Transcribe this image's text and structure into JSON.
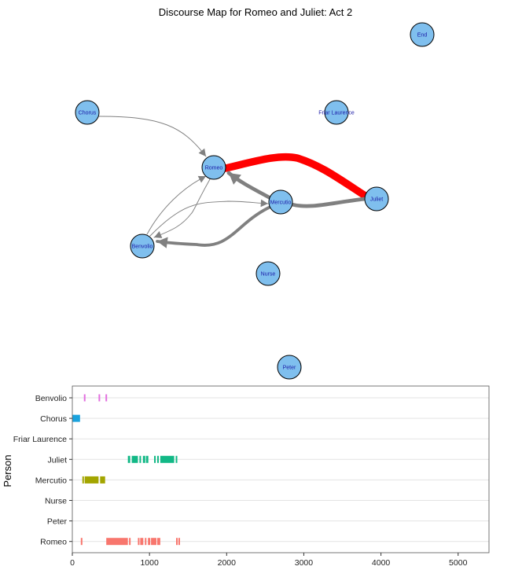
{
  "chart_data": [
    {
      "type": "network",
      "title": "Discourse Map for Romeo and Juliet: Act 2",
      "colors": {
        "node_fill": "#7fbfee",
        "node_stroke": "#000000",
        "node_label": "#1a1aa6",
        "edge_default": "#808080",
        "edge_highlight": "#ff0000"
      },
      "nodes": [
        {
          "id": "Chorus",
          "label": "Chorus"
        },
        {
          "id": "Romeo",
          "label": "Romeo"
        },
        {
          "id": "Mercutio",
          "label": "Mercutio"
        },
        {
          "id": "Juliet",
          "label": "Juliet"
        },
        {
          "id": "Benvolio",
          "label": "Benvolio"
        },
        {
          "id": "Nurse",
          "label": "Nurse"
        },
        {
          "id": "Friar Laurence",
          "label": "Friar Laurence"
        },
        {
          "id": "End",
          "label": "End"
        },
        {
          "id": "Peter",
          "label": "Peter"
        }
      ],
      "edges": [
        {
          "from": "Chorus",
          "to": "Romeo",
          "weight": 1,
          "arrow": true
        },
        {
          "from": "Romeo",
          "to": "Juliet",
          "weight": 10,
          "arrow": false,
          "highlight": true
        },
        {
          "from": "Juliet",
          "to": "Mercutio",
          "weight": 5,
          "arrow": false
        },
        {
          "from": "Mercutio",
          "to": "Romeo",
          "weight": 5,
          "arrow": true
        },
        {
          "from": "Mercutio",
          "to": "Benvolio",
          "weight": 4,
          "arrow": true
        },
        {
          "from": "Benvolio",
          "to": "Romeo",
          "weight": 1,
          "arrow": true
        },
        {
          "from": "Romeo",
          "to": "Benvolio",
          "weight": 1,
          "arrow": true
        },
        {
          "from": "Benvolio",
          "to": "Mercutio",
          "weight": 1,
          "arrow": true
        }
      ]
    },
    {
      "type": "gantt",
      "ylabel": "Person",
      "xlabel": "",
      "xlim": [
        0,
        5400
      ],
      "xticks": [
        0,
        1000,
        2000,
        3000,
        4000,
        5000
      ],
      "categories": [
        "Benvolio",
        "Chorus",
        "Friar Laurence",
        "Juliet",
        "Mercutio",
        "Nurse",
        "Peter",
        "Romeo"
      ],
      "series": [
        {
          "category": "Benvolio",
          "color": "#e36fe0",
          "segments": [
            [
              150,
              170
            ],
            [
              340,
              360
            ],
            [
              430,
              448
            ]
          ]
        },
        {
          "category": "Chorus",
          "color": "#1aa2dd",
          "segments": [
            [
              0,
              100
            ]
          ]
        },
        {
          "category": "Friar Laurence",
          "color": "#8c74ff",
          "segments": []
        },
        {
          "category": "Juliet",
          "color": "#12b886",
          "segments": [
            [
              720,
              750
            ],
            [
              770,
              850
            ],
            [
              870,
              880
            ],
            [
              915,
              945
            ],
            [
              955,
              985
            ],
            [
              1060,
              1080
            ],
            [
              1100,
              1110
            ],
            [
              1140,
              1320
            ],
            [
              1340,
              1360
            ]
          ]
        },
        {
          "category": "Mercutio",
          "color": "#a3a500",
          "segments": [
            [
              130,
              145
            ],
            [
              160,
              340
            ],
            [
              360,
              425
            ]
          ]
        },
        {
          "category": "Nurse",
          "color": "#00bfc4",
          "segments": []
        },
        {
          "category": "Peter",
          "color": "#5b9bf5",
          "segments": []
        },
        {
          "category": "Romeo",
          "color": "#f8766d",
          "segments": [
            [
              110,
              125
            ],
            [
              440,
              720
            ],
            [
              735,
              750
            ],
            [
              850,
              870
            ],
            [
              880,
              920
            ],
            [
              940,
              960
            ],
            [
              980,
              1010
            ],
            [
              1020,
              1090
            ],
            [
              1100,
              1140
            ],
            [
              1345,
              1360
            ],
            [
              1375,
              1390
            ]
          ]
        }
      ]
    }
  ]
}
